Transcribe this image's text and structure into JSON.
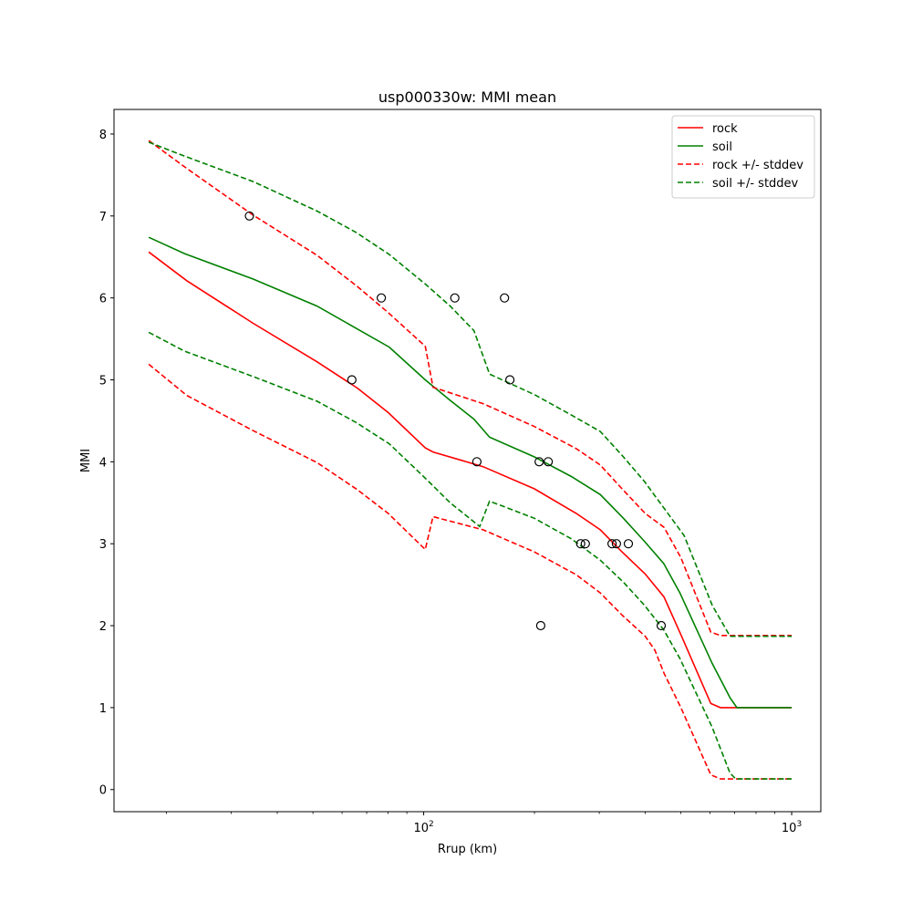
{
  "chart_data": {
    "type": "line",
    "title": "usp000330w: MMI mean",
    "xlabel": "Rrup (km)",
    "ylabel": "MMI",
    "xscale": "log",
    "xlim": [
      14.4,
      1200
    ],
    "ylim": [
      -0.27,
      8.3
    ],
    "xticks": [
      {
        "value": 100,
        "base": "10",
        "exp": "2"
      },
      {
        "value": 1000,
        "base": "10",
        "exp": "3"
      }
    ],
    "yticks": [
      0,
      1,
      2,
      3,
      4,
      5,
      6,
      7,
      8
    ],
    "grid": false,
    "legend_position": "top-right",
    "series": [
      {
        "name": "rock",
        "color": "#ff0000",
        "style": "solid",
        "points": [
          [
            17.9,
            6.56
          ],
          [
            22.7,
            6.21
          ],
          [
            34.4,
            5.69
          ],
          [
            51.3,
            5.22
          ],
          [
            66.0,
            4.9
          ],
          [
            80.1,
            4.6
          ],
          [
            101,
            4.17
          ],
          [
            106,
            4.12
          ],
          [
            145,
            3.94
          ],
          [
            200,
            3.67
          ],
          [
            260,
            3.37
          ],
          [
            302,
            3.17
          ],
          [
            346,
            2.9
          ],
          [
            400,
            2.63
          ],
          [
            450,
            2.35
          ],
          [
            500,
            1.89
          ],
          [
            603,
            1.05
          ],
          [
            640,
            1.0
          ],
          [
            1000,
            1.0
          ]
        ]
      },
      {
        "name": "soil",
        "color": "#008000",
        "style": "solid",
        "points": [
          [
            17.9,
            6.74
          ],
          [
            22.4,
            6.54
          ],
          [
            34.4,
            6.23
          ],
          [
            51.3,
            5.9
          ],
          [
            65.5,
            5.63
          ],
          [
            80.6,
            5.4
          ],
          [
            101,
            5.0
          ],
          [
            118,
            4.75
          ],
          [
            137,
            4.52
          ],
          [
            151,
            4.3
          ],
          [
            200,
            4.06
          ],
          [
            252,
            3.82
          ],
          [
            302,
            3.6
          ],
          [
            349,
            3.31
          ],
          [
            398,
            3.03
          ],
          [
            449,
            2.76
          ],
          [
            497,
            2.4
          ],
          [
            608,
            1.54
          ],
          [
            680,
            1.12
          ],
          [
            710,
            1.0
          ],
          [
            1000,
            1.0
          ]
        ]
      },
      {
        "name": "rock +/- stddev",
        "color": "#ff0000",
        "style": "dashed",
        "points": [
          [
            17.9,
            7.92
          ],
          [
            22.7,
            7.58
          ],
          [
            34.4,
            7.01
          ],
          [
            51.3,
            6.52
          ],
          [
            66.0,
            6.14
          ],
          [
            80.1,
            5.82
          ],
          [
            101,
            5.41
          ],
          [
            106,
            4.91
          ],
          [
            145,
            4.71
          ],
          [
            200,
            4.43
          ],
          [
            260,
            4.16
          ],
          [
            302,
            3.96
          ],
          [
            346,
            3.67
          ],
          [
            400,
            3.37
          ],
          [
            450,
            3.2
          ],
          [
            500,
            2.83
          ],
          [
            603,
            1.92
          ],
          [
            640,
            1.88
          ],
          [
            1000,
            1.88
          ]
        ]
      },
      {
        "name": "",
        "color": "#ff0000",
        "style": "dashed",
        "points": [
          [
            17.9,
            5.19
          ],
          [
            22.7,
            4.81
          ],
          [
            34.4,
            4.38
          ],
          [
            51.3,
            3.99
          ],
          [
            66.0,
            3.66
          ],
          [
            80.1,
            3.37
          ],
          [
            101,
            2.93
          ],
          [
            106,
            3.33
          ],
          [
            145,
            3.17
          ],
          [
            200,
            2.9
          ],
          [
            260,
            2.62
          ],
          [
            302,
            2.4
          ],
          [
            346,
            2.13
          ],
          [
            400,
            1.87
          ],
          [
            425,
            1.7
          ],
          [
            450,
            1.42
          ],
          [
            500,
            1.0
          ],
          [
            603,
            0.18
          ],
          [
            640,
            0.13
          ],
          [
            1000,
            0.13
          ]
        ]
      },
      {
        "name": "soil +/- stddev",
        "color": "#008000",
        "style": "dashed",
        "points": [
          [
            17.9,
            7.9
          ],
          [
            22.4,
            7.73
          ],
          [
            34.4,
            7.42
          ],
          [
            51.3,
            7.06
          ],
          [
            65.5,
            6.8
          ],
          [
            80.6,
            6.53
          ],
          [
            101,
            6.17
          ],
          [
            118,
            5.9
          ],
          [
            137,
            5.6
          ],
          [
            151,
            5.07
          ],
          [
            200,
            4.82
          ],
          [
            252,
            4.57
          ],
          [
            302,
            4.37
          ],
          [
            349,
            4.06
          ],
          [
            398,
            3.76
          ],
          [
            449,
            3.44
          ],
          [
            510,
            3.1
          ],
          [
            608,
            2.25
          ],
          [
            680,
            1.87
          ],
          [
            1000,
            1.87
          ]
        ]
      },
      {
        "name": "",
        "color": "#008000",
        "style": "dashed",
        "points": [
          [
            17.9,
            5.58
          ],
          [
            22.4,
            5.35
          ],
          [
            34.4,
            5.04
          ],
          [
            51.3,
            4.74
          ],
          [
            65.5,
            4.48
          ],
          [
            80.6,
            4.22
          ],
          [
            101,
            3.8
          ],
          [
            118,
            3.5
          ],
          [
            142,
            3.21
          ],
          [
            151,
            3.52
          ],
          [
            200,
            3.31
          ],
          [
            252,
            3.06
          ],
          [
            302,
            2.8
          ],
          [
            349,
            2.53
          ],
          [
            398,
            2.25
          ],
          [
            449,
            1.95
          ],
          [
            497,
            1.6
          ],
          [
            608,
            0.76
          ],
          [
            680,
            0.2
          ],
          [
            705,
            0.13
          ],
          [
            1000,
            0.13
          ]
        ]
      }
    ],
    "observations": [
      {
        "x": 33.6,
        "y": 7
      },
      {
        "x": 76.7,
        "y": 6
      },
      {
        "x": 121.5,
        "y": 6
      },
      {
        "x": 165.8,
        "y": 6
      },
      {
        "x": 63.8,
        "y": 5
      },
      {
        "x": 171.5,
        "y": 5
      },
      {
        "x": 139.5,
        "y": 4
      },
      {
        "x": 206,
        "y": 4
      },
      {
        "x": 218,
        "y": 4
      },
      {
        "x": 267,
        "y": 3
      },
      {
        "x": 275,
        "y": 3
      },
      {
        "x": 325,
        "y": 3
      },
      {
        "x": 334,
        "y": 3
      },
      {
        "x": 360,
        "y": 3
      },
      {
        "x": 208,
        "y": 2
      },
      {
        "x": 442,
        "y": 2
      }
    ]
  }
}
